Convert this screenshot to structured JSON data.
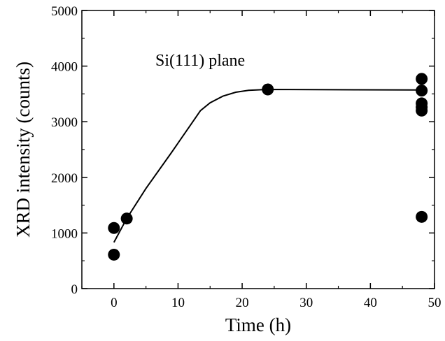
{
  "chart_data": {
    "type": "scatter",
    "title": "",
    "xlabel": "Time (h)",
    "ylabel": "XRD intensity  (counts)",
    "xlim": [
      -5,
      50
    ],
    "ylim": [
      0,
      5000
    ],
    "xticks": [
      0,
      10,
      20,
      30,
      40,
      50
    ],
    "yticks": [
      0,
      1000,
      2000,
      3000,
      4000,
      5000
    ],
    "grid": false,
    "annotation": "Si(111) plane",
    "points": [
      {
        "x": 0,
        "y": 1090
      },
      {
        "x": 0,
        "y": 610
      },
      {
        "x": 2,
        "y": 1260
      },
      {
        "x": 24,
        "y": 3580
      },
      {
        "x": 48,
        "y": 3770
      },
      {
        "x": 48,
        "y": 3560
      },
      {
        "x": 48,
        "y": 3330
      },
      {
        "x": 48,
        "y": 3260
      },
      {
        "x": 48,
        "y": 3200
      },
      {
        "x": 48,
        "y": 1290
      }
    ],
    "fit_curve": [
      {
        "x": 0,
        "y": 830
      },
      {
        "x": 2,
        "y": 1260
      },
      {
        "x": 5,
        "y": 1800
      },
      {
        "x": 9,
        "y": 2450
      },
      {
        "x": 12,
        "y": 2950
      },
      {
        "x": 13.5,
        "y": 3200
      },
      {
        "x": 15,
        "y": 3340
      },
      {
        "x": 17,
        "y": 3460
      },
      {
        "x": 19,
        "y": 3530
      },
      {
        "x": 21,
        "y": 3565
      },
      {
        "x": 24,
        "y": 3580
      },
      {
        "x": 48,
        "y": 3570
      }
    ]
  }
}
